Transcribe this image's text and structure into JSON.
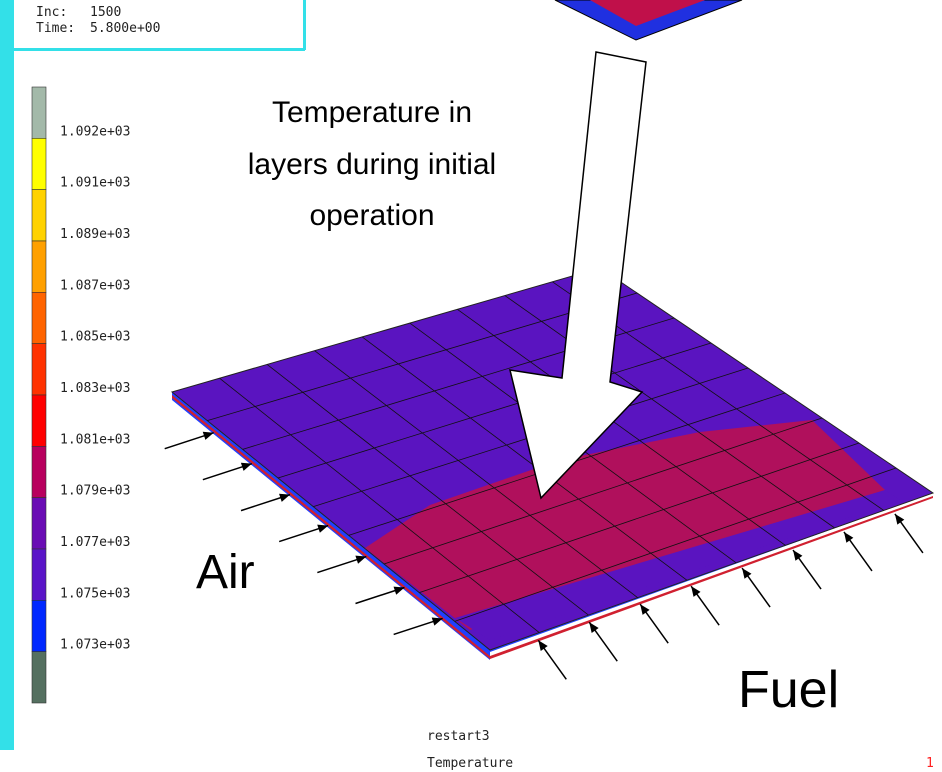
{
  "header": {
    "inc_label": "Inc:",
    "inc": "1500",
    "time_label": "Time:",
    "time": "5.800e+00"
  },
  "legend": {
    "labels": [
      "1.092e+03",
      "1.091e+03",
      "1.089e+03",
      "1.087e+03",
      "1.085e+03",
      "1.083e+03",
      "1.081e+03",
      "1.079e+03",
      "1.077e+03",
      "1.075e+03",
      "1.073e+03"
    ],
    "colors": [
      "#a3b9a9",
      "#ffff00",
      "#ffd200",
      "#ffa000",
      "#ff6400",
      "#ff3200",
      "#ff0000",
      "#b8005e",
      "#6a0cb4",
      "#5a14c8",
      "#0028ff",
      "#557060"
    ]
  },
  "annotations": {
    "title_lines": [
      "Temperature in",
      "layers during initial",
      "operation"
    ],
    "air": "Air",
    "fuel": "Fuel"
  },
  "footer": {
    "job": "restart3",
    "variable": "Temperature",
    "frame": "1"
  }
}
